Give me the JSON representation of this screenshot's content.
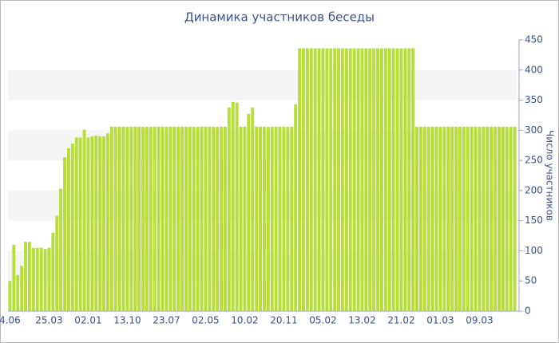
{
  "chart_data": {
    "type": "bar",
    "title": "Динамика участников беседы",
    "y_label": "Число участников",
    "categories": [
      "4.06",
      null,
      null,
      null,
      null,
      null,
      null,
      null,
      null,
      null,
      "25.03",
      null,
      null,
      null,
      null,
      null,
      null,
      null,
      null,
      null,
      "02.01",
      null,
      null,
      null,
      null,
      null,
      null,
      null,
      null,
      null,
      "13.10",
      null,
      null,
      null,
      null,
      null,
      null,
      null,
      null,
      null,
      "23.07",
      null,
      null,
      null,
      null,
      null,
      null,
      null,
      null,
      null,
      "02.05",
      null,
      null,
      null,
      null,
      null,
      null,
      null,
      null,
      null,
      "10.02",
      null,
      null,
      null,
      null,
      null,
      null,
      null,
      null,
      null,
      "20.11",
      null,
      null,
      null,
      null,
      null,
      null,
      null,
      null,
      null,
      "05.02",
      null,
      null,
      null,
      null,
      null,
      null,
      null,
      null,
      null,
      "13.02",
      null,
      null,
      null,
      null,
      null,
      null,
      null,
      null,
      null,
      "21.02",
      null,
      null,
      null,
      null,
      null,
      null,
      null,
      null,
      null,
      "01.03",
      null,
      null,
      null,
      null,
      null,
      null,
      null,
      null,
      null,
      "09.03",
      null,
      null,
      null,
      null,
      null,
      null,
      null,
      null,
      null
    ],
    "values": [
      50,
      110,
      60,
      75,
      115,
      115,
      105,
      105,
      105,
      103,
      105,
      130,
      158,
      203,
      255,
      270,
      278,
      288,
      288,
      301,
      288,
      290,
      291,
      290,
      290,
      295,
      306,
      306,
      306,
      306,
      306,
      306,
      306,
      306,
      306,
      306,
      306,
      306,
      306,
      306,
      306,
      306,
      306,
      306,
      306,
      306,
      306,
      306,
      306,
      306,
      306,
      306,
      306,
      306,
      306,
      306,
      338,
      347,
      346,
      306,
      306,
      327,
      338,
      306,
      306,
      306,
      306,
      306,
      306,
      306,
      306,
      306,
      306,
      343,
      436,
      436,
      436,
      436,
      436,
      436,
      436,
      436,
      436,
      436,
      436,
      436,
      436,
      436,
      436,
      436,
      436,
      436,
      436,
      436,
      436,
      436,
      436,
      436,
      436,
      436,
      436,
      436,
      436,
      436,
      306,
      306,
      306,
      306,
      306,
      306,
      306,
      306,
      306,
      306,
      306,
      306,
      306,
      306,
      306,
      306,
      306,
      306,
      306,
      306,
      306,
      306,
      306,
      306,
      306,
      306
    ],
    "color": "#b7de3a",
    "ylim": [
      0,
      450
    ],
    "yticks": [
      0,
      50,
      100,
      150,
      200,
      250,
      300,
      350,
      400,
      450
    ],
    "grid": "bands",
    "band_color": "#f5f5f5"
  }
}
